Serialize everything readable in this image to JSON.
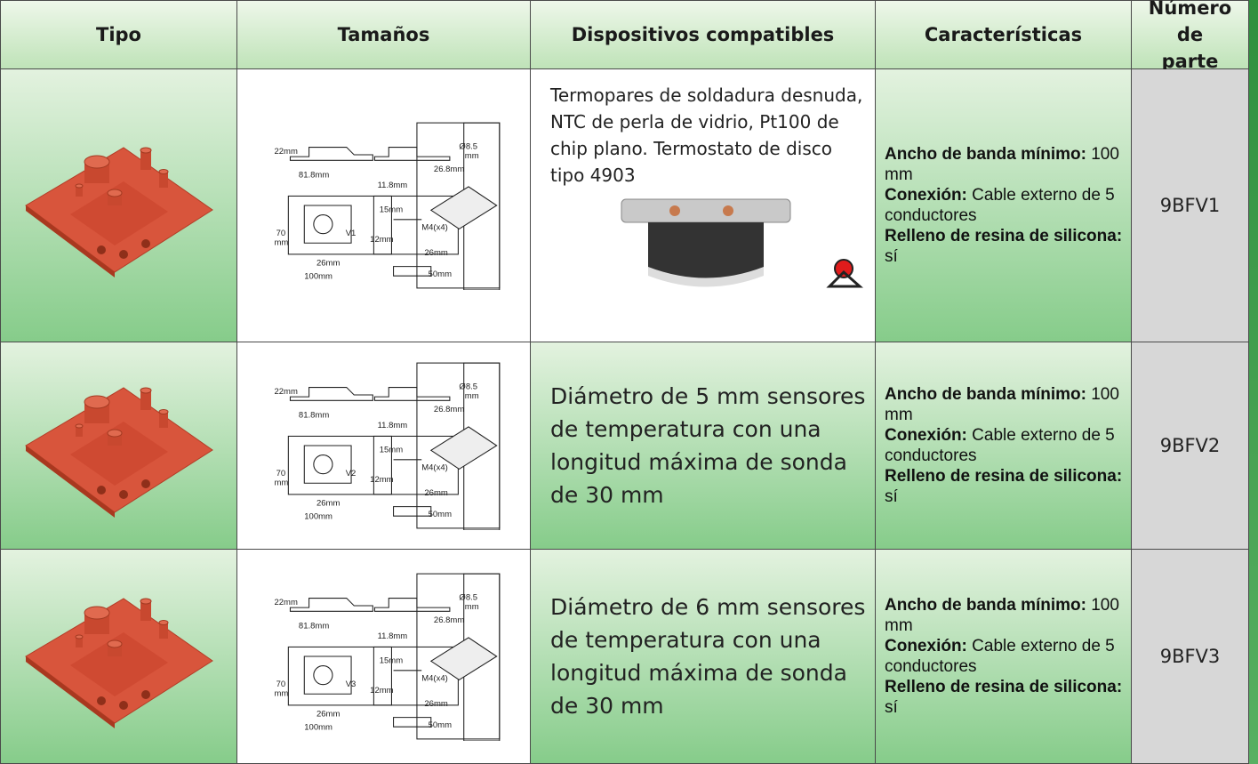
{
  "header": {
    "type": "Tipo",
    "sizes": "Tamaños",
    "devices": "Dispositivos compatibles",
    "features": "Características",
    "part_number": "Número de parte"
  },
  "rows": [
    {
      "drawing_labels": [
        "22mm",
        "Ø8.5",
        "mm",
        "81.8mm",
        "26.8mm",
        "11.8mm",
        "70",
        "mm",
        "V1",
        "15mm",
        "M4(x4)",
        "12mm",
        "26mm",
        "26mm",
        "50mm",
        "100mm"
      ],
      "devices": "Termopares de soldadura desnuda, NTC de perla de vidrio, Pt100 de chip plano. Termostato de disco tipo 4903",
      "features": [
        {
          "label": "Ancho de banda mínimo:",
          "text": "100 mm"
        },
        {
          "label": "Conexión:",
          "text": "Cable externo de 5 conductores"
        },
        {
          "label": "Relleno de resina de silicona:",
          "text": "sí"
        }
      ],
      "part_number": "9BFV1"
    },
    {
      "drawing_labels": [
        "22mm",
        "Ø8.5",
        "mm",
        "81.8mm",
        "26.8mm",
        "11.8mm",
        "70",
        "mm",
        "V2",
        "15mm",
        "M4(x4)",
        "12mm",
        "26mm",
        "26mm",
        "50mm",
        "100mm"
      ],
      "devices": "Diámetro de 5 mm sensores de temperatura con una longitud máxima de sonda de 30 mm",
      "features": [
        {
          "label": "Ancho de banda mínimo:",
          "text": "100 mm"
        },
        {
          "label": "Conexión:",
          "text": "Cable externo de 5 conductores"
        },
        {
          "label": "Relleno de resina de silicona:",
          "text": "sí"
        }
      ],
      "part_number": "9BFV2"
    },
    {
      "drawing_labels": [
        "22mm",
        "Ø8.5",
        "mm",
        "81.8mm",
        "26.8mm",
        "11.8mm",
        "70",
        "mm",
        "V3",
        "15mm",
        "M4(x4)",
        "12mm",
        "26mm",
        "26mm",
        "50mm",
        "100mm"
      ],
      "devices": "Diámetro de 6 mm sensores de temperatura con una longitud máxima de sonda de 30 mm",
      "features": [
        {
          "label": "Ancho de banda mínimo:",
          "text": "100 mm"
        },
        {
          "label": "Conexión:",
          "text": "Cable externo de 5 conductores"
        },
        {
          "label": "Relleno de resina de silicona:",
          "text": "sí"
        }
      ],
      "part_number": "9BFV3"
    }
  ]
}
